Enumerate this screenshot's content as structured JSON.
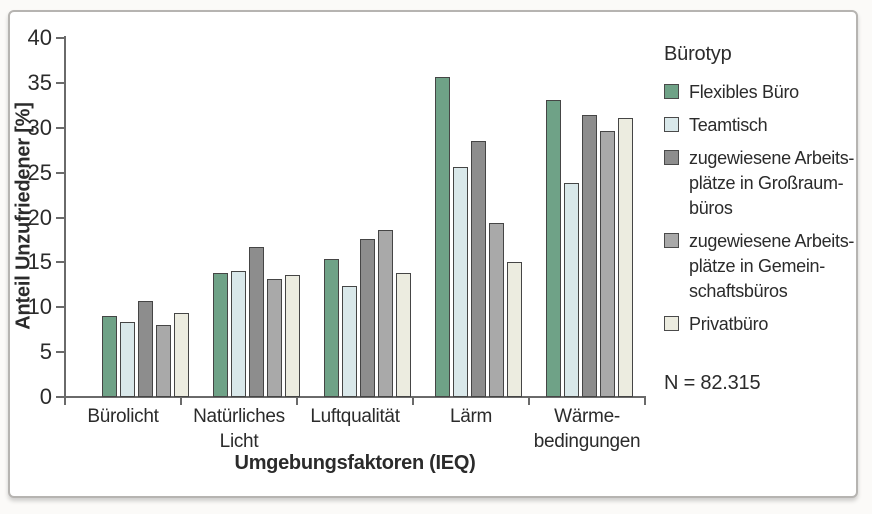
{
  "figure": {
    "note": "N = 82.315"
  },
  "legend": {
    "title": "Bürotyp",
    "entries": [
      {
        "label": "Flexibles Büro",
        "color": "#6fa287"
      },
      {
        "label": "Teamtisch",
        "color": "#d9e8ea"
      },
      {
        "label": "zugewiesene Arbeits-\nplätze in Großraum-\nbüros",
        "color": "#8d8d8d"
      },
      {
        "label": "zugewiesene Arbeits-\nplätze in Gemein-\nschaftsbüros",
        "color": "#a9a9a9"
      },
      {
        "label": "Privatbüro",
        "color": "#ecece0"
      }
    ]
  },
  "chart_data": {
    "type": "bar",
    "title": "",
    "xlabel": "Umgebungsfaktoren (IEQ)",
    "ylabel": "Anteil Unzufriedener [%]",
    "ylim": [
      0,
      40
    ],
    "yticks": [
      0,
      5,
      10,
      15,
      20,
      25,
      30,
      35,
      40
    ],
    "grid": false,
    "legend_position": "right",
    "categories": [
      "Bürolicht",
      "Natürliches\nLicht",
      "Luftqualität",
      "Lärm",
      "Wärme-\nbedingungen"
    ],
    "series": [
      {
        "name": "Flexibles Büro",
        "color": "#6fa287",
        "values": [
          9.0,
          13.8,
          15.4,
          35.7,
          33.1
        ]
      },
      {
        "name": "Teamtisch",
        "color": "#d9e8ea",
        "values": [
          8.4,
          14.0,
          12.4,
          25.6,
          23.8
        ]
      },
      {
        "name": "zugewiesene Arbeitsplätze in Großraumbüros",
        "color": "#8d8d8d",
        "values": [
          10.7,
          16.7,
          17.6,
          28.5,
          31.4
        ]
      },
      {
        "name": "zugewiesene Arbeitsplätze in Gemeinschaftsbüros",
        "color": "#a9a9a9",
        "values": [
          8.0,
          13.2,
          18.6,
          19.4,
          29.6
        ]
      },
      {
        "name": "Privatbüro",
        "color": "#ecece0",
        "values": [
          9.4,
          13.6,
          13.8,
          15.0,
          31.1
        ]
      }
    ]
  }
}
